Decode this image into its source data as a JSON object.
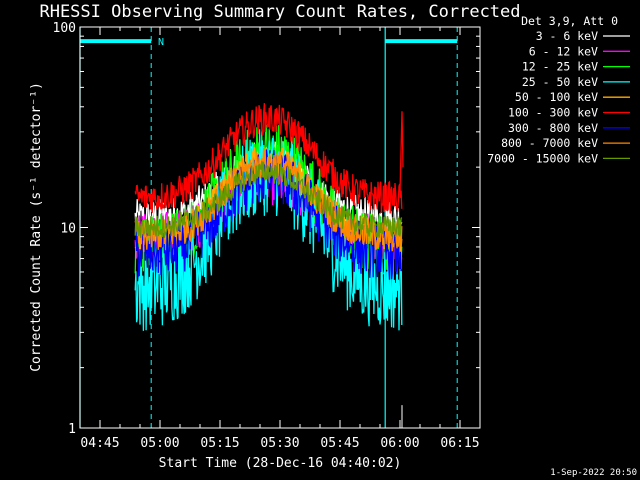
{
  "chart_data": {
    "type": "line",
    "title": "RHESSI Observing Summary Count Rates, Corrected",
    "xlabel": "Start Time (28-Dec-16 04:40:02)",
    "ylabel": "Corrected Count Rate (s⁻¹ detector⁻¹)",
    "y_scale": "log",
    "ylim": [
      1,
      100
    ],
    "xlim_minutes": [
      0,
      100
    ],
    "x_ticks": [
      "04:45",
      "05:00",
      "05:15",
      "05:30",
      "05:45",
      "06:00",
      "06:15"
    ],
    "y_ticks": [
      "1",
      "10",
      "100"
    ],
    "legend_title": "Det 3,9, Att 0",
    "legend_position": "outside-right",
    "series": [
      {
        "name": "3 - 6 keV",
        "color": "#ffffff",
        "base": 11,
        "peak": 22,
        "noise": 0.1
      },
      {
        "name": "6 - 12 keV",
        "color": "#ff00ff",
        "base": 9,
        "peak": 17,
        "noise": 0.12
      },
      {
        "name": "12 - 25 keV",
        "color": "#00ff00",
        "base": 8,
        "peak": 24,
        "noise": 0.16
      },
      {
        "name": "25 - 50 keV",
        "color": "#00ffff",
        "base": 5,
        "peak": 19,
        "noise": 0.22
      },
      {
        "name": "50 - 100 keV",
        "color": "#ffaa00",
        "base": 9,
        "peak": 22,
        "noise": 0.08
      },
      {
        "name": "100 - 300 keV",
        "color": "#ff0000",
        "base": 14,
        "peak": 35,
        "noise": 0.08
      },
      {
        "name": "300 - 800 keV",
        "color": "#0000ff",
        "base": 7.5,
        "peak": 18,
        "noise": 0.14
      },
      {
        "name": "800 - 7000 keV",
        "color": "#ff8800",
        "base": 9,
        "peak": 21,
        "noise": 0.08
      },
      {
        "name": "7000 - 15000 keV",
        "color": "#669900",
        "base": 10,
        "peak": 19,
        "noise": 0.06
      }
    ],
    "data_start_min": 13.8,
    "data_end_min": 80.5,
    "flare_peak_min": 47,
    "flare_width_min": 13,
    "spike_min": 80.5,
    "spike_peak": 38,
    "orbit_markers": {
      "solid_lines_min": [
        0,
        76.3
      ],
      "dashed_lines_min": [
        17.8,
        94.3
      ],
      "day_bars": [
        [
          0,
          17.8
        ],
        [
          76.3,
          94.3
        ]
      ],
      "day_bar_level": 85,
      "label": "N",
      "label_min": 19.5,
      "color": "#00ffff"
    }
  },
  "timestamp": "1-Sep-2022 20:50"
}
